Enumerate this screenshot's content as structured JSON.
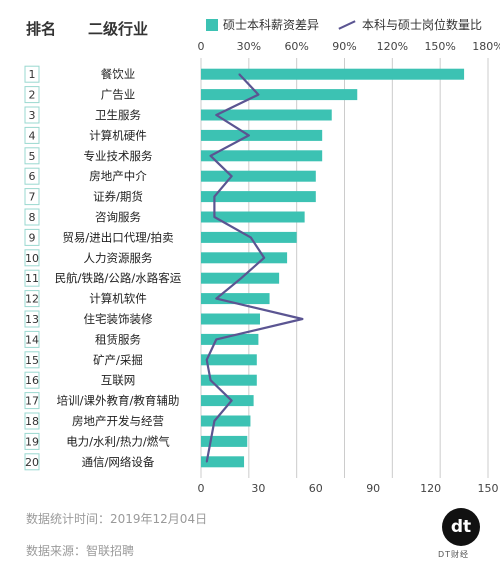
{
  "header": {
    "rank_label": "排名",
    "industry_label": "二级行业"
  },
  "legend": {
    "bar_label": "硕士本科薪资差异",
    "line_label": "本科与硕士岗位数量比"
  },
  "footer": {
    "stat_time": "数据统计时间：2019年12月04日",
    "source": "数据来源：智联招聘"
  },
  "logo": {
    "mark": "dt",
    "sub": "DT财经"
  },
  "colors": {
    "bar": "#3cc2b3",
    "line": "#5b5592",
    "grid": "#cccccc"
  },
  "chart_data": {
    "type": "bar",
    "orientation": "horizontal",
    "categories": [
      "餐饮业",
      "广告业",
      "卫生服务",
      "计算机硬件",
      "专业技术服务",
      "房地产中介",
      "证券/期货",
      "咨询服务",
      "贸易/进出口代理/拍卖",
      "人力资源服务",
      "民航/铁路/公路/水路客运",
      "计算机软件",
      "住宅装饰装修",
      "租赁服务",
      "矿产/采掘",
      "互联网",
      "培训/课外教育/教育辅助",
      "房地产开发与经营",
      "电力/水利/热力/燃气",
      "通信/网络设备"
    ],
    "ranks": [
      "1",
      "2",
      "3",
      "4",
      "5",
      "6",
      "7",
      "8",
      "9",
      "10",
      "11",
      "12",
      "13",
      "14",
      "15",
      "16",
      "17",
      "18",
      "19",
      "20"
    ],
    "series": [
      {
        "values": [
          165,
          98,
          82,
          76,
          76,
          72,
          72,
          65,
          60,
          54,
          49,
          43,
          37,
          36,
          35,
          35,
          33,
          31,
          29,
          27
        ],
        "axis": "top",
        "unit": "%"
      },
      {
        "values": [
          20,
          30,
          8,
          25,
          5,
          16,
          7,
          7,
          26,
          33,
          21,
          8,
          53,
          8,
          3,
          5,
          16,
          7,
          5,
          3
        ],
        "axis": "bottom"
      }
    ],
    "top_axis": {
      "ticks": [
        "0",
        "30%",
        "60%",
        "90%",
        "120%",
        "150%",
        "180%"
      ],
      "range": [
        0,
        180
      ]
    },
    "bottom_axis": {
      "ticks": [
        "0",
        "30",
        "60",
        "90",
        "120",
        "150"
      ],
      "range": [
        0,
        150
      ]
    },
    "grid": true
  }
}
